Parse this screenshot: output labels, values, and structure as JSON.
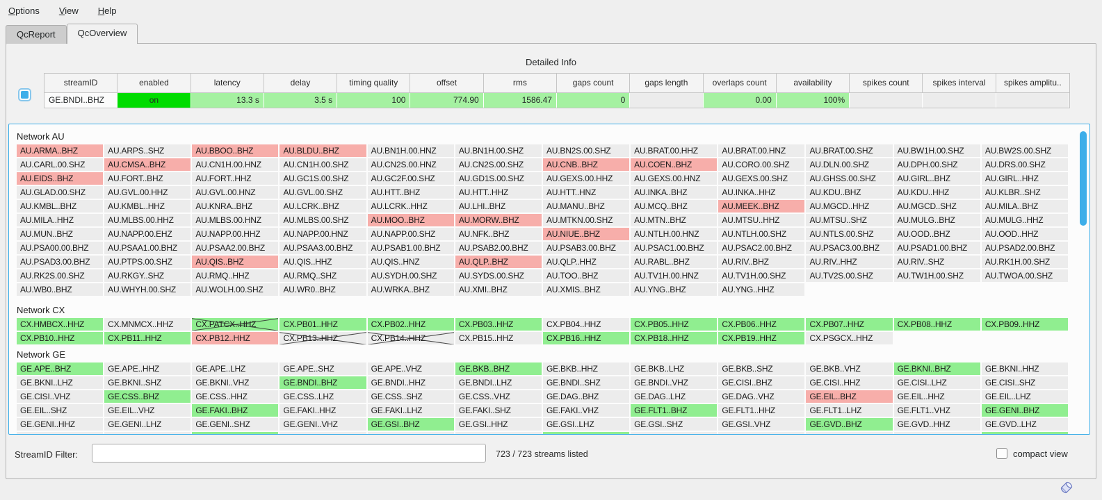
{
  "menu_bar": {
    "items": [
      "Options",
      "View",
      "Help"
    ]
  },
  "tabs": {
    "items": [
      {
        "label": "QcReport",
        "active": false
      },
      {
        "label": "QcOverview",
        "active": true
      }
    ]
  },
  "detailed_info": {
    "title": "Detailed Info",
    "columns": [
      "streamID",
      "enabled",
      "latency",
      "delay",
      "timing quality",
      "offset",
      "rms",
      "gaps count",
      "gaps length",
      "overlaps count",
      "availability",
      "spikes count",
      "spikes interval",
      "spikes amplitu.."
    ],
    "row_cells": [
      {
        "v": "GE.BNDI..BHZ",
        "s": "left"
      },
      {
        "v": "on",
        "s": "on"
      },
      {
        "v": "13.3 s",
        "s": "ok"
      },
      {
        "v": "3.5 s",
        "s": "ok"
      },
      {
        "v": "100",
        "s": "ok"
      },
      {
        "v": "774.90",
        "s": "ok"
      },
      {
        "v": "1586.47",
        "s": "ok"
      },
      {
        "v": "0",
        "s": "ok"
      },
      {
        "v": "",
        "s": "na"
      },
      {
        "v": "0.00",
        "s": "ok"
      },
      {
        "v": "100%",
        "s": "ok"
      },
      {
        "v": "",
        "s": "na"
      },
      {
        "v": "",
        "s": "na"
      },
      {
        "v": "",
        "s": "na"
      }
    ]
  },
  "stream_grid": {
    "networks": [
      {
        "name": "Network AU",
        "rows": [
          [
            [
              "AU.ARMA..BHZ",
              "r"
            ],
            [
              "AU.ARPS..SHZ",
              ""
            ],
            [
              "AU.BBOO..BHZ",
              "r"
            ],
            [
              "AU.BLDU..BHZ",
              "r"
            ],
            [
              "AU.BN1H.00.HNZ",
              ""
            ],
            [
              "AU.BN1H.00.SHZ",
              ""
            ],
            [
              "AU.BN2S.00.SHZ",
              ""
            ],
            [
              "AU.BRAT.00.HHZ",
              ""
            ],
            [
              "AU.BRAT.00.HNZ",
              ""
            ],
            [
              "AU.BRAT.00.SHZ",
              ""
            ],
            [
              "AU.BW1H.00.SHZ",
              ""
            ],
            [
              "AU.BW2S.00.SHZ",
              ""
            ]
          ],
          [
            [
              "AU.CARL.00.SHZ",
              ""
            ],
            [
              "AU.CMSA..BHZ",
              "r"
            ],
            [
              "AU.CN1H.00.HNZ",
              ""
            ],
            [
              "AU.CN1H.00.SHZ",
              ""
            ],
            [
              "AU.CN2S.00.HNZ",
              ""
            ],
            [
              "AU.CN2S.00.SHZ",
              ""
            ],
            [
              "AU.CNB..BHZ",
              "r"
            ],
            [
              "AU.COEN..BHZ",
              "r"
            ],
            [
              "AU.CORO.00.SHZ",
              ""
            ],
            [
              "AU.DLN.00.SHZ",
              ""
            ],
            [
              "AU.DPH.00.SHZ",
              ""
            ],
            [
              "AU.DRS.00.SHZ",
              ""
            ]
          ],
          [
            [
              "AU.EIDS..BHZ",
              "r"
            ],
            [
              "AU.FORT..BHZ",
              ""
            ],
            [
              "AU.FORT..HHZ",
              ""
            ],
            [
              "AU.GC1S.00.SHZ",
              ""
            ],
            [
              "AU.GC2F.00.SHZ",
              ""
            ],
            [
              "AU.GD1S.00.SHZ",
              ""
            ],
            [
              "AU.GEXS.00.HHZ",
              ""
            ],
            [
              "AU.GEXS.00.HNZ",
              ""
            ],
            [
              "AU.GEXS.00.SHZ",
              ""
            ],
            [
              "AU.GHSS.00.SHZ",
              ""
            ],
            [
              "AU.GIRL..BHZ",
              ""
            ],
            [
              "AU.GIRL..HHZ",
              ""
            ]
          ],
          [
            [
              "AU.GLAD.00.SHZ",
              ""
            ],
            [
              "AU.GVL.00.HHZ",
              ""
            ],
            [
              "AU.GVL.00.HNZ",
              ""
            ],
            [
              "AU.GVL.00.SHZ",
              ""
            ],
            [
              "AU.HTT..BHZ",
              ""
            ],
            [
              "AU.HTT..HHZ",
              ""
            ],
            [
              "AU.HTT..HNZ",
              ""
            ],
            [
              "AU.INKA..BHZ",
              ""
            ],
            [
              "AU.INKA..HHZ",
              ""
            ],
            [
              "AU.KDU..BHZ",
              ""
            ],
            [
              "AU.KDU..HHZ",
              ""
            ],
            [
              "AU.KLBR..SHZ",
              ""
            ]
          ],
          [
            [
              "AU.KMBL..BHZ",
              ""
            ],
            [
              "AU.KMBL..HHZ",
              ""
            ],
            [
              "AU.KNRA..BHZ",
              ""
            ],
            [
              "AU.LCRK..BHZ",
              ""
            ],
            [
              "AU.LCRK..HHZ",
              ""
            ],
            [
              "AU.LHI..BHZ",
              ""
            ],
            [
              "AU.MANU..BHZ",
              ""
            ],
            [
              "AU.MCQ..BHZ",
              ""
            ],
            [
              "AU.MEEK..BHZ",
              "r"
            ],
            [
              "AU.MGCD..HHZ",
              ""
            ],
            [
              "AU.MGCD..SHZ",
              ""
            ],
            [
              "AU.MILA..BHZ",
              ""
            ]
          ],
          [
            [
              "AU.MILA..HHZ",
              ""
            ],
            [
              "AU.MLBS.00.HHZ",
              ""
            ],
            [
              "AU.MLBS.00.HNZ",
              ""
            ],
            [
              "AU.MLBS.00.SHZ",
              ""
            ],
            [
              "AU.MOO..BHZ",
              "r"
            ],
            [
              "AU.MORW..BHZ",
              "r"
            ],
            [
              "AU.MTKN.00.SHZ",
              ""
            ],
            [
              "AU.MTN..BHZ",
              ""
            ],
            [
              "AU.MTSU..HHZ",
              ""
            ],
            [
              "AU.MTSU..SHZ",
              ""
            ],
            [
              "AU.MULG..BHZ",
              ""
            ],
            [
              "AU.MULG..HHZ",
              ""
            ]
          ],
          [
            [
              "AU.MUN..BHZ",
              ""
            ],
            [
              "AU.NAPP.00.EHZ",
              ""
            ],
            [
              "AU.NAPP.00.HHZ",
              ""
            ],
            [
              "AU.NAPP.00.HNZ",
              ""
            ],
            [
              "AU.NAPP.00.SHZ",
              ""
            ],
            [
              "AU.NFK..BHZ",
              ""
            ],
            [
              "AU.NIUE..BHZ",
              "r"
            ],
            [
              "AU.NTLH.00.HNZ",
              ""
            ],
            [
              "AU.NTLH.00.SHZ",
              ""
            ],
            [
              "AU.NTLS.00.SHZ",
              ""
            ],
            [
              "AU.OOD..BHZ",
              ""
            ],
            [
              "AU.OOD..HHZ",
              ""
            ]
          ],
          [
            [
              "AU.PSA00.00.BHZ",
              ""
            ],
            [
              "AU.PSAA1.00.BHZ",
              ""
            ],
            [
              "AU.PSAA2.00.BHZ",
              ""
            ],
            [
              "AU.PSAA3.00.BHZ",
              ""
            ],
            [
              "AU.PSAB1.00.BHZ",
              ""
            ],
            [
              "AU.PSAB2.00.BHZ",
              ""
            ],
            [
              "AU.PSAB3.00.BHZ",
              ""
            ],
            [
              "AU.PSAC1.00.BHZ",
              ""
            ],
            [
              "AU.PSAC2.00.BHZ",
              ""
            ],
            [
              "AU.PSAC3.00.BHZ",
              ""
            ],
            [
              "AU.PSAD1.00.BHZ",
              ""
            ],
            [
              "AU.PSAD2.00.BHZ",
              ""
            ]
          ],
          [
            [
              "AU.PSAD3.00.BHZ",
              ""
            ],
            [
              "AU.PTPS.00.SHZ",
              ""
            ],
            [
              "AU.QIS..BHZ",
              "r"
            ],
            [
              "AU.QIS..HHZ",
              ""
            ],
            [
              "AU.QIS..HNZ",
              ""
            ],
            [
              "AU.QLP..BHZ",
              "r"
            ],
            [
              "AU.QLP..HHZ",
              ""
            ],
            [
              "AU.RABL..BHZ",
              ""
            ],
            [
              "AU.RIV..BHZ",
              ""
            ],
            [
              "AU.RIV..HHZ",
              ""
            ],
            [
              "AU.RIV..SHZ",
              ""
            ],
            [
              "AU.RK1H.00.SHZ",
              ""
            ]
          ],
          [
            [
              "AU.RK2S.00.SHZ",
              ""
            ],
            [
              "AU.RKGY..SHZ",
              ""
            ],
            [
              "AU.RMQ..HHZ",
              ""
            ],
            [
              "AU.RMQ..SHZ",
              ""
            ],
            [
              "AU.SYDH.00.SHZ",
              ""
            ],
            [
              "AU.SYDS.00.SHZ",
              ""
            ],
            [
              "AU.TOO..BHZ",
              ""
            ],
            [
              "AU.TV1H.00.HNZ",
              ""
            ],
            [
              "AU.TV1H.00.SHZ",
              ""
            ],
            [
              "AU.TV2S.00.SHZ",
              ""
            ],
            [
              "AU.TW1H.00.SHZ",
              ""
            ],
            [
              "AU.TWOA.00.SHZ",
              ""
            ]
          ],
          [
            [
              "AU.WB0..BHZ",
              ""
            ],
            [
              "AU.WHYH.00.SHZ",
              ""
            ],
            [
              "AU.WOLH.00.SHZ",
              ""
            ],
            [
              "AU.WR0..BHZ",
              ""
            ],
            [
              "AU.WRKA..BHZ",
              ""
            ],
            [
              "AU.XMI..BHZ",
              ""
            ],
            [
              "AU.XMIS..BHZ",
              ""
            ],
            [
              "AU.YNG..BHZ",
              ""
            ],
            [
              "AU.YNG..HHZ",
              ""
            ],
            [
              "",
              "e"
            ],
            [
              "",
              "e"
            ],
            [
              "",
              "e"
            ]
          ]
        ]
      },
      {
        "name": "Network CX",
        "rows": [
          [
            [
              "CX.HMBCX..HHZ",
              "g"
            ],
            [
              "CX.MNMCX..HHZ",
              ""
            ],
            [
              "CX.PATCX..HHZ",
              "gx"
            ],
            [
              "CX.PB01..HHZ",
              "g"
            ],
            [
              "CX.PB02..HHZ",
              "g"
            ],
            [
              "CX.PB03..HHZ",
              "g"
            ],
            [
              "CX.PB04..HHZ",
              ""
            ],
            [
              "CX.PB05..HHZ",
              "g"
            ],
            [
              "CX.PB06..HHZ",
              "g"
            ],
            [
              "CX.PB07..HHZ",
              "g"
            ],
            [
              "CX.PB08..HHZ",
              "g"
            ],
            [
              "CX.PB09..HHZ",
              "g"
            ]
          ],
          [
            [
              "CX.PB10..HHZ",
              "g"
            ],
            [
              "CX.PB11..HHZ",
              "g"
            ],
            [
              "CX.PB12..HHZ",
              "r"
            ],
            [
              "CX.PB13..HHZ",
              "x"
            ],
            [
              "CX.PB14..HHZ",
              "x"
            ],
            [
              "CX.PB15..HHZ",
              ""
            ],
            [
              "CX.PB16..HHZ",
              "g"
            ],
            [
              "CX.PB18..HHZ",
              "g"
            ],
            [
              "CX.PB19..HHZ",
              "g"
            ],
            [
              "CX.PSGCX..HHZ",
              ""
            ],
            [
              "",
              "e"
            ],
            [
              "",
              "e"
            ]
          ]
        ]
      },
      {
        "name": "Network GE",
        "rows": [
          [
            [
              "GE.APE..BHZ",
              "g"
            ],
            [
              "GE.APE..HHZ",
              ""
            ],
            [
              "GE.APE..LHZ",
              ""
            ],
            [
              "GE.APE..SHZ",
              ""
            ],
            [
              "GE.APE..VHZ",
              ""
            ],
            [
              "GE.BKB..BHZ",
              "g"
            ],
            [
              "GE.BKB..HHZ",
              ""
            ],
            [
              "GE.BKB..LHZ",
              ""
            ],
            [
              "GE.BKB..SHZ",
              ""
            ],
            [
              "GE.BKB..VHZ",
              ""
            ],
            [
              "GE.BKNI..BHZ",
              "g"
            ],
            [
              "GE.BKNI..HHZ",
              ""
            ]
          ],
          [
            [
              "GE.BKNI..LHZ",
              ""
            ],
            [
              "GE.BKNI..SHZ",
              ""
            ],
            [
              "GE.BKNI..VHZ",
              ""
            ],
            [
              "GE.BNDI..BHZ",
              "g"
            ],
            [
              "GE.BNDI..HHZ",
              ""
            ],
            [
              "GE.BNDI..LHZ",
              ""
            ],
            [
              "GE.BNDI..SHZ",
              ""
            ],
            [
              "GE.BNDI..VHZ",
              ""
            ],
            [
              "GE.CISI..BHZ",
              ""
            ],
            [
              "GE.CISI..HHZ",
              ""
            ],
            [
              "GE.CISI..LHZ",
              ""
            ],
            [
              "GE.CISI..SHZ",
              ""
            ]
          ],
          [
            [
              "GE.CISI..VHZ",
              ""
            ],
            [
              "GE.CSS..BHZ",
              "g"
            ],
            [
              "GE.CSS..HHZ",
              ""
            ],
            [
              "GE.CSS..LHZ",
              ""
            ],
            [
              "GE.CSS..SHZ",
              ""
            ],
            [
              "GE.CSS..VHZ",
              ""
            ],
            [
              "GE.DAG..BHZ",
              ""
            ],
            [
              "GE.DAG..LHZ",
              ""
            ],
            [
              "GE.DAG..VHZ",
              ""
            ],
            [
              "GE.EIL..BHZ",
              "r"
            ],
            [
              "GE.EIL..HHZ",
              ""
            ],
            [
              "GE.EIL..LHZ",
              ""
            ]
          ],
          [
            [
              "GE.EIL..SHZ",
              ""
            ],
            [
              "GE.EIL..VHZ",
              ""
            ],
            [
              "GE.FAKI..BHZ",
              "g"
            ],
            [
              "GE.FAKI..HHZ",
              ""
            ],
            [
              "GE.FAKI..LHZ",
              ""
            ],
            [
              "GE.FAKI..SHZ",
              ""
            ],
            [
              "GE.FAKI..VHZ",
              ""
            ],
            [
              "GE.FLT1..BHZ",
              "g"
            ],
            [
              "GE.FLT1..HHZ",
              ""
            ],
            [
              "GE.FLT1..LHZ",
              ""
            ],
            [
              "GE.FLT1..VHZ",
              ""
            ],
            [
              "GE.GENI..BHZ",
              "g"
            ]
          ],
          [
            [
              "GE.GENI..HHZ",
              ""
            ],
            [
              "GE.GENI..LHZ",
              ""
            ],
            [
              "GE.GENI..SHZ",
              ""
            ],
            [
              "GE.GENI..VHZ",
              ""
            ],
            [
              "GE.GSI..BHZ",
              "g"
            ],
            [
              "GE.GSI..HHZ",
              ""
            ],
            [
              "GE.GSI..LHZ",
              ""
            ],
            [
              "GE.GSI..SHZ",
              ""
            ],
            [
              "GE.GSI..VHZ",
              ""
            ],
            [
              "GE.GVD..BHZ",
              "g"
            ],
            [
              "GE.GVD..HHZ",
              ""
            ],
            [
              "GE.GVD..LHZ",
              ""
            ]
          ],
          [
            [
              "",
              ""
            ],
            [
              "",
              ""
            ],
            [
              "",
              "g"
            ],
            [
              "",
              ""
            ],
            [
              "",
              ""
            ],
            [
              "",
              ""
            ],
            [
              "",
              "g"
            ],
            [
              "",
              ""
            ],
            [
              "",
              ""
            ],
            [
              "",
              ""
            ],
            [
              "",
              ""
            ],
            [
              "",
              "g"
            ]
          ]
        ]
      }
    ]
  },
  "footer": {
    "filter_label": "StreamID Filter:",
    "filter_value": "",
    "count_text": "723 / 723 streams listed",
    "compact_view_label": "compact view",
    "compact_view_checked": false
  },
  "colors": {
    "accent_blue": "#3daee9",
    "cell_default": "#ececec",
    "cell_good": "#90ee90",
    "cell_alert": "#f7aeaa",
    "enabled_on": "#00dc00",
    "value_ok": "#a5f1a1"
  },
  "icons": {
    "detail_toggle": "blue-square-icon",
    "corner": "tilted-cylinder-logo-icon"
  }
}
